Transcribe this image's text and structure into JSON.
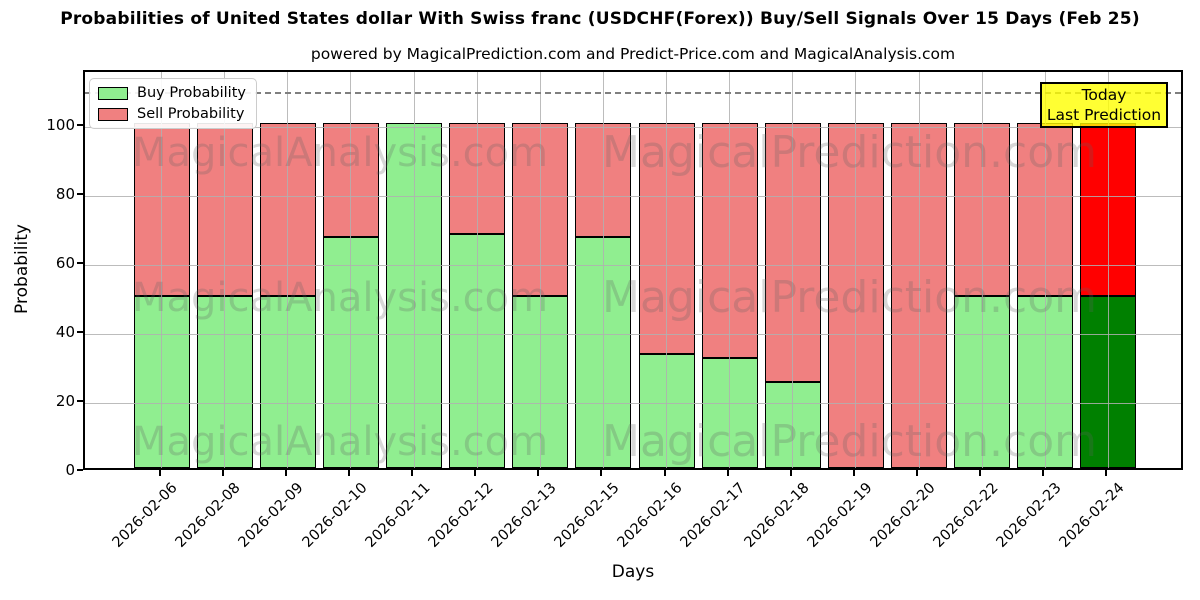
{
  "title": "Probabilities of United States dollar With Swiss franc (USDCHF(Forex)) Buy/Sell Signals Over 15 Days (Feb 25)",
  "subtitle": "powered by MagicalPrediction.com and Predict-Price.com and MagicalAnalysis.com",
  "annotation": {
    "line1": "Today",
    "line2": "Last Prediction",
    "bg_color": "#ffff00"
  },
  "watermarks": {
    "left_text": "MagicalAnalysis.com",
    "right_text": "MagicalPrediction.com",
    "rows": 3
  },
  "chart_data": {
    "type": "bar",
    "stacked": true,
    "title": "Probabilities of United States dollar With Swiss franc (USDCHF(Forex)) Buy/Sell Signals Over 15 Days (Feb 25)",
    "xlabel": "Days",
    "ylabel": "Probability",
    "ylim": [
      0,
      116
    ],
    "yticks": [
      0,
      20,
      40,
      60,
      80,
      100
    ],
    "grid": true,
    "dashed_line_y": 110,
    "categories": [
      "2026-02-06",
      "2026-02-08",
      "2026-02-09",
      "2026-02-10",
      "2026-02-11",
      "2026-02-12",
      "2026-02-13",
      "2026-02-15",
      "2026-02-16",
      "2026-02-17",
      "2026-02-18",
      "2026-02-19",
      "2026-02-20",
      "2026-02-22",
      "2026-02-23",
      "2026-02-24"
    ],
    "series": [
      {
        "name": "Buy Probability",
        "values": [
          50,
          50,
          50,
          67,
          100,
          68,
          50,
          67,
          33,
          32,
          25,
          0,
          0,
          50,
          50,
          50
        ]
      },
      {
        "name": "Sell Probability",
        "values": [
          50,
          50,
          50,
          33,
          0,
          32,
          50,
          33,
          67,
          68,
          75,
          100,
          100,
          50,
          50,
          50
        ]
      }
    ],
    "today_index": 15,
    "legend": {
      "position": "upper left",
      "entries": [
        {
          "label": "Buy Probability",
          "color": "#90ee90"
        },
        {
          "label": "Sell Probability",
          "color": "#f08080"
        }
      ]
    },
    "colors": {
      "buy": "#90ee90",
      "sell": "#f08080",
      "today_buy": "#008000",
      "today_sell": "#ff0000",
      "edge": "#000000",
      "grid": "#b0b0b0",
      "dashed": "#7f7f7f"
    }
  }
}
